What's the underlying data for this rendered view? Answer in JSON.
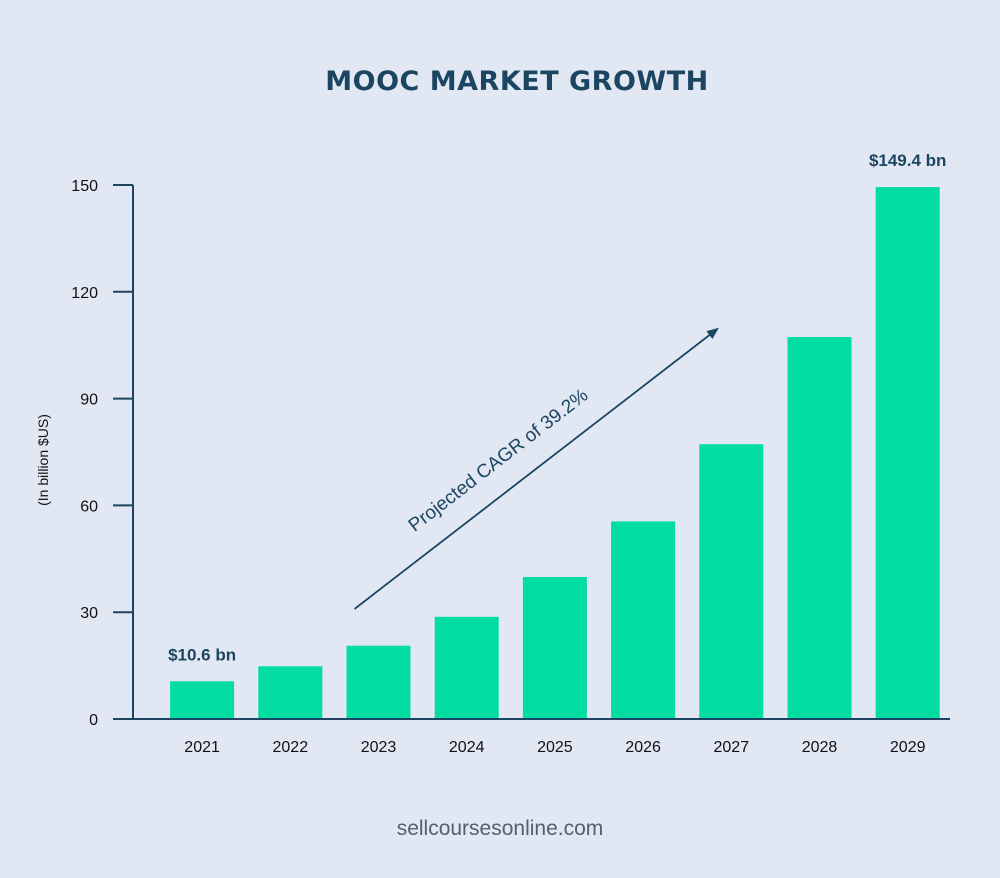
{
  "chart_data": {
    "type": "bar",
    "title": "MOOC MARKET GROWTH",
    "ylabel": "(In billion $US)",
    "xlabel": "",
    "categories": [
      "2021",
      "2022",
      "2023",
      "2024",
      "2025",
      "2026",
      "2027",
      "2028",
      "2029"
    ],
    "values": [
      10.6,
      14.8,
      20.6,
      28.7,
      39.9,
      55.5,
      77.2,
      107.3,
      149.4
    ],
    "ylim": [
      0,
      150
    ],
    "yticks": [
      0,
      30,
      60,
      90,
      120,
      150
    ],
    "grid": false,
    "data_labels": [
      {
        "category": "2021",
        "text": "$10.6 bn"
      },
      {
        "category": "2029",
        "text": "$149.4 bn"
      }
    ],
    "annotation": {
      "text": "Projected CAGR of 39.2%",
      "from_category": "2023",
      "to_category": "2027"
    }
  },
  "footer": {
    "text": "sellcoursesonline.com"
  },
  "colors": {
    "background": "#e2e8f3",
    "bar": "#02dda4",
    "title": "#1b4561",
    "axis": "#1b4561",
    "tick_label": "#111111",
    "data_label": "#1b4561",
    "annotation": "#1b4561",
    "footer": "#555f68"
  }
}
